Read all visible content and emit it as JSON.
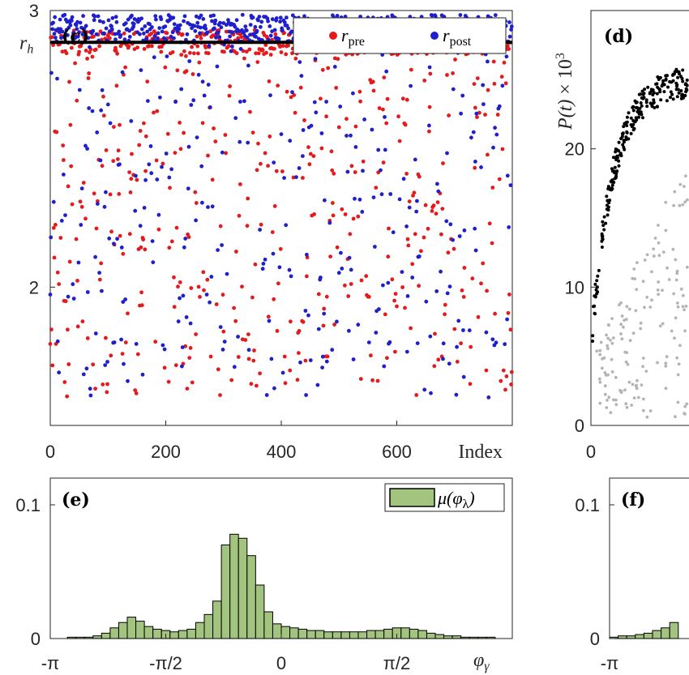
{
  "chart_data": [
    {
      "panel": "(c)",
      "type": "scatter",
      "xlabel": "Index",
      "xlim": [
        0,
        800
      ],
      "ylim": [
        1.5,
        3.0
      ],
      "x_ticks": [
        "0",
        "200",
        "400",
        "600"
      ],
      "y_ticks": [
        "2",
        "3"
      ],
      "ref_line": {
        "label": "r",
        "label_sub": "h",
        "y": 2.885
      },
      "legend": [
        {
          "label": "r",
          "sub": "pre",
          "color": "#e41a1c"
        },
        {
          "label": "r",
          "sub": "post",
          "color": "#1f1fcc"
        }
      ],
      "series": [
        {
          "name_main": "r",
          "name_sub": "pre",
          "color": "#e41a1c",
          "n": 800,
          "band": [
            2.84,
            2.93
          ],
          "spread": [
            1.6,
            2.88
          ],
          "band_fraction": 0.5
        },
        {
          "name_main": "r",
          "name_sub": "post",
          "color": "#1f1fcc",
          "n": 800,
          "band": [
            2.885,
            2.985
          ],
          "spread": [
            1.6,
            2.885
          ],
          "band_fraction": 0.62
        }
      ]
    },
    {
      "panel": "(d)",
      "type": "scatter",
      "ylabel_main": "P(t)",
      "ylabel_times": "×",
      "ylabel_base": "10",
      "ylabel_exp": "3",
      "ylim": [
        0,
        30
      ],
      "x_ticks": [
        "0"
      ],
      "y_ticks": [
        "0",
        "10",
        "20"
      ],
      "series": [
        {
          "color": "#000000",
          "curve": "rising"
        },
        {
          "color": "#b4b4b4",
          "curve": "scattered"
        }
      ]
    },
    {
      "panel": "(e)",
      "type": "bar",
      "xlabel_main": "φ",
      "xlabel_sub": "γ",
      "xlim": [
        -3.1416,
        3.1416
      ],
      "ylim": [
        0,
        0.12
      ],
      "x_ticks": [
        "-π",
        "-π/2",
        "0",
        "π/2"
      ],
      "y_ticks": [
        "0",
        "0.1"
      ],
      "legend": [
        {
          "label": "μ(φ",
          "sub": "λ",
          "close": ")",
          "color": "#a3c47f"
        }
      ],
      "bar_color": "#a3c47f",
      "values": [
        0.0,
        0.0,
        0.001,
        0.001,
        0.001,
        0.002,
        0.004,
        0.008,
        0.012,
        0.016,
        0.013,
        0.009,
        0.007,
        0.006,
        0.005,
        0.006,
        0.007,
        0.012,
        0.018,
        0.028,
        0.07,
        0.078,
        0.075,
        0.062,
        0.04,
        0.02,
        0.011,
        0.009,
        0.008,
        0.007,
        0.006,
        0.006,
        0.005,
        0.005,
        0.005,
        0.005,
        0.005,
        0.006,
        0.006,
        0.007,
        0.008,
        0.008,
        0.007,
        0.006,
        0.004,
        0.003,
        0.002,
        0.002,
        0.001,
        0.001,
        0.001,
        0.001,
        0.0,
        0.0
      ]
    },
    {
      "panel": "(f)",
      "type": "bar",
      "ylim": [
        0,
        0.12
      ],
      "x_ticks": [
        "-π"
      ],
      "y_ticks": [
        "0",
        "0.1"
      ],
      "bar_color": "#a3c47f",
      "values": [
        0.001,
        0.002,
        0.002,
        0.003,
        0.004,
        0.006,
        0.008,
        0.012
      ]
    }
  ]
}
